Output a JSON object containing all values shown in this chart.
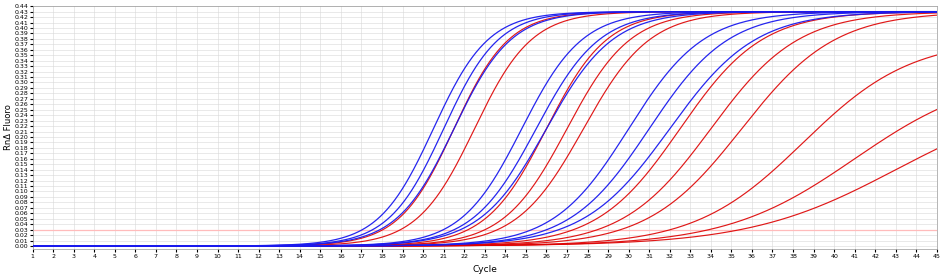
{
  "title": "",
  "xlabel": "Cycle",
  "ylabel": "RnΔ Fluoro",
  "xlim": [
    1,
    45
  ],
  "ylim": [
    -0.005,
    0.44
  ],
  "ytick_min": 0.0,
  "ytick_max": 0.44,
  "ytick_step": 0.01,
  "xticks": [
    1,
    2,
    3,
    4,
    5,
    6,
    7,
    8,
    9,
    10,
    11,
    12,
    13,
    14,
    15,
    16,
    17,
    18,
    19,
    20,
    21,
    22,
    23,
    24,
    25,
    26,
    27,
    28,
    29,
    30,
    31,
    32,
    33,
    34,
    35,
    36,
    37,
    38,
    39,
    40,
    41,
    42,
    43,
    44,
    45
  ],
  "threshold": 0.03,
  "threshold_color": "#ffbbbb",
  "background_color": "#ffffff",
  "grid_color": "#d8d8d8",
  "blue_color": "#1a1aee",
  "red_color": "#dd0000",
  "blue_curves": [
    {
      "L": 0.43,
      "k": 0.75,
      "x0": 20.5
    },
    {
      "L": 0.43,
      "k": 0.75,
      "x0": 21.0
    },
    {
      "L": 0.43,
      "k": 0.72,
      "x0": 21.5
    },
    {
      "L": 0.43,
      "k": 0.68,
      "x0": 24.8
    },
    {
      "L": 0.43,
      "k": 0.65,
      "x0": 25.5
    },
    {
      "L": 0.43,
      "k": 0.62,
      "x0": 26.0
    },
    {
      "L": 0.43,
      "k": 0.55,
      "x0": 30.0
    },
    {
      "L": 0.43,
      "k": 0.52,
      "x0": 31.0
    },
    {
      "L": 0.43,
      "k": 0.48,
      "x0": 32.0
    }
  ],
  "red_curves": [
    {
      "L": 0.43,
      "k": 0.75,
      "x0": 21.5
    },
    {
      "L": 0.43,
      "k": 0.72,
      "x0": 22.5
    },
    {
      "L": 0.43,
      "k": 0.68,
      "x0": 26.0
    },
    {
      "L": 0.43,
      "k": 0.65,
      "x0": 27.0
    },
    {
      "L": 0.43,
      "k": 0.62,
      "x0": 27.8
    },
    {
      "L": 0.43,
      "k": 0.5,
      "x0": 32.5
    },
    {
      "L": 0.43,
      "k": 0.47,
      "x0": 34.0
    },
    {
      "L": 0.43,
      "k": 0.44,
      "x0": 35.5
    },
    {
      "L": 0.38,
      "k": 0.38,
      "x0": 38.5
    },
    {
      "L": 0.32,
      "k": 0.32,
      "x0": 41.0
    },
    {
      "L": 0.28,
      "k": 0.28,
      "x0": 43.0
    }
  ]
}
